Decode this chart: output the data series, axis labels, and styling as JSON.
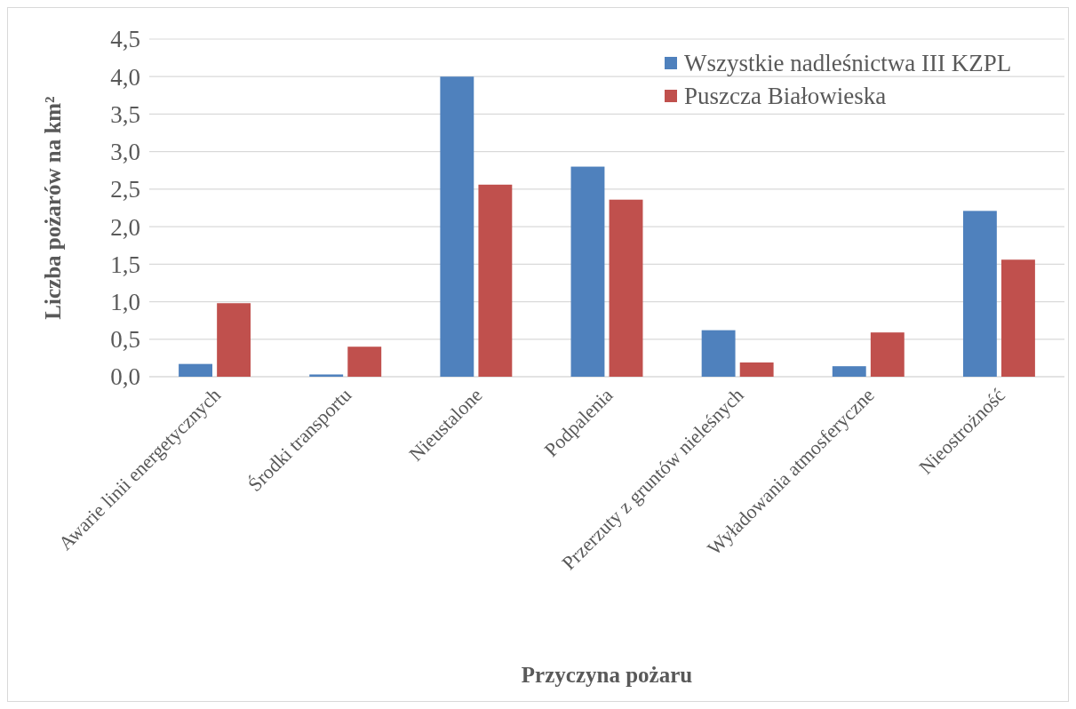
{
  "chart_data": {
    "type": "bar",
    "xlabel": "Przyczyna pożaru",
    "ylabel": "Liczba pożarów na km²",
    "categories": [
      "Awarie linii energetycznych",
      "Środki transportu",
      "Nieustalone",
      "Podpalenia",
      "Przerzuty z gruntów nieleśnych",
      "Wyładowania atmosferyczne",
      "Nieostrożność"
    ],
    "series": [
      {
        "name": "Wszystkie nadleśnictwa III KZPL",
        "color": "#4f81bd",
        "values": [
          0.17,
          0.03,
          4.0,
          2.8,
          0.62,
          0.14,
          2.21
        ]
      },
      {
        "name": "Puszcza Białowieska",
        "color": "#c0504d",
        "values": [
          0.98,
          0.4,
          2.56,
          2.36,
          0.19,
          0.59,
          1.56
        ]
      }
    ],
    "ylim": [
      0,
      4.5
    ],
    "yticks": [
      {
        "value": 0,
        "label": "0,0"
      },
      {
        "value": 0.5,
        "label": "0,5"
      },
      {
        "value": 1,
        "label": "1,0"
      },
      {
        "value": 1.5,
        "label": "1,5"
      },
      {
        "value": 2,
        "label": "2,0"
      },
      {
        "value": 2.5,
        "label": "2,5"
      },
      {
        "value": 3,
        "label": "3,0"
      },
      {
        "value": 3.5,
        "label": "3,5"
      },
      {
        "value": 4,
        "label": "4,0"
      },
      {
        "value": 4.5,
        "label": "4,5"
      }
    ],
    "grid": "y",
    "legend": "top right"
  }
}
